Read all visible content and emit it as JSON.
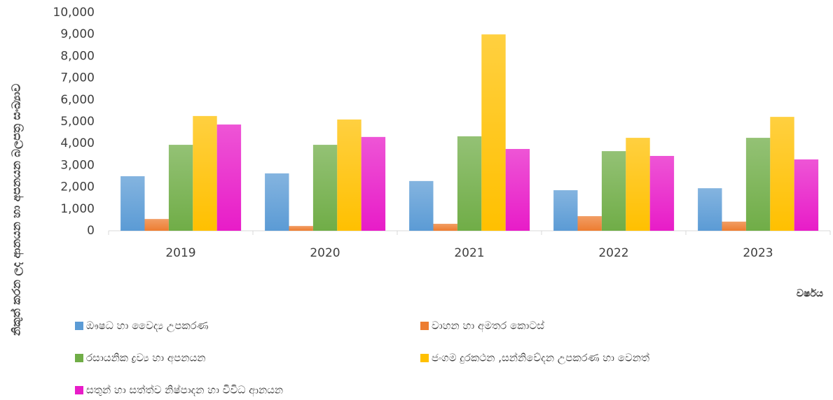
{
  "chart_data": {
    "type": "bar",
    "y_label": "නිකුත් කරන ලද ආනයන හා අපනයන බලපත්‍ර සංඛ්‍යාව",
    "x_label": "වර්ෂය",
    "categories": [
      "2019",
      "2020",
      "2021",
      "2022",
      "2023"
    ],
    "series": [
      {
        "name": "ඖෂධ හා වෛද්‍ය උපකරණ",
        "color": "#5b9bd5",
        "values": [
          2500,
          2630,
          2280,
          1860,
          1950
        ]
      },
      {
        "name": "වාහන හා අමතර කොටස්",
        "color": "#ed7d31",
        "values": [
          540,
          220,
          320,
          670,
          420
        ]
      },
      {
        "name": "රසායනික ද්‍රව්‍ය හා අපනයන",
        "color": "#70ad47",
        "values": [
          3940,
          3940,
          4330,
          3650,
          4260
        ]
      },
      {
        "name": "ජංගම දුරකථන ,සන්නිවේදන උපකරණ හා වෙනත්",
        "color": "#ffc000",
        "values": [
          5260,
          5100,
          9000,
          4260,
          5220
        ]
      },
      {
        "name": "සතුන් හා සත්ත්ව නිෂ්පාදන හා විවිධ ආනයන",
        "color": "#e81cc8",
        "values": [
          4870,
          4300,
          3750,
          3430,
          3270
        ]
      }
    ],
    "ylim": [
      0,
      10000
    ],
    "yticks": [
      0,
      {
        "value": 1000,
        "label": "1,000"
      },
      {
        "value": 2000,
        "label": "2,000"
      },
      {
        "value": 3000,
        "label": "3,000"
      },
      {
        "value": 4000,
        "label": "4,000"
      },
      {
        "value": 5000,
        "label": "5,000"
      },
      {
        "value": 6000,
        "label": "6,000"
      },
      {
        "value": 7000,
        "label": "7,000"
      },
      {
        "value": 8000,
        "label": "8,000"
      },
      {
        "value": 9000,
        "label": "9,000"
      },
      {
        "value": 10000,
        "label": "10,000"
      }
    ],
    "grid": false,
    "legend": "bottom"
  }
}
